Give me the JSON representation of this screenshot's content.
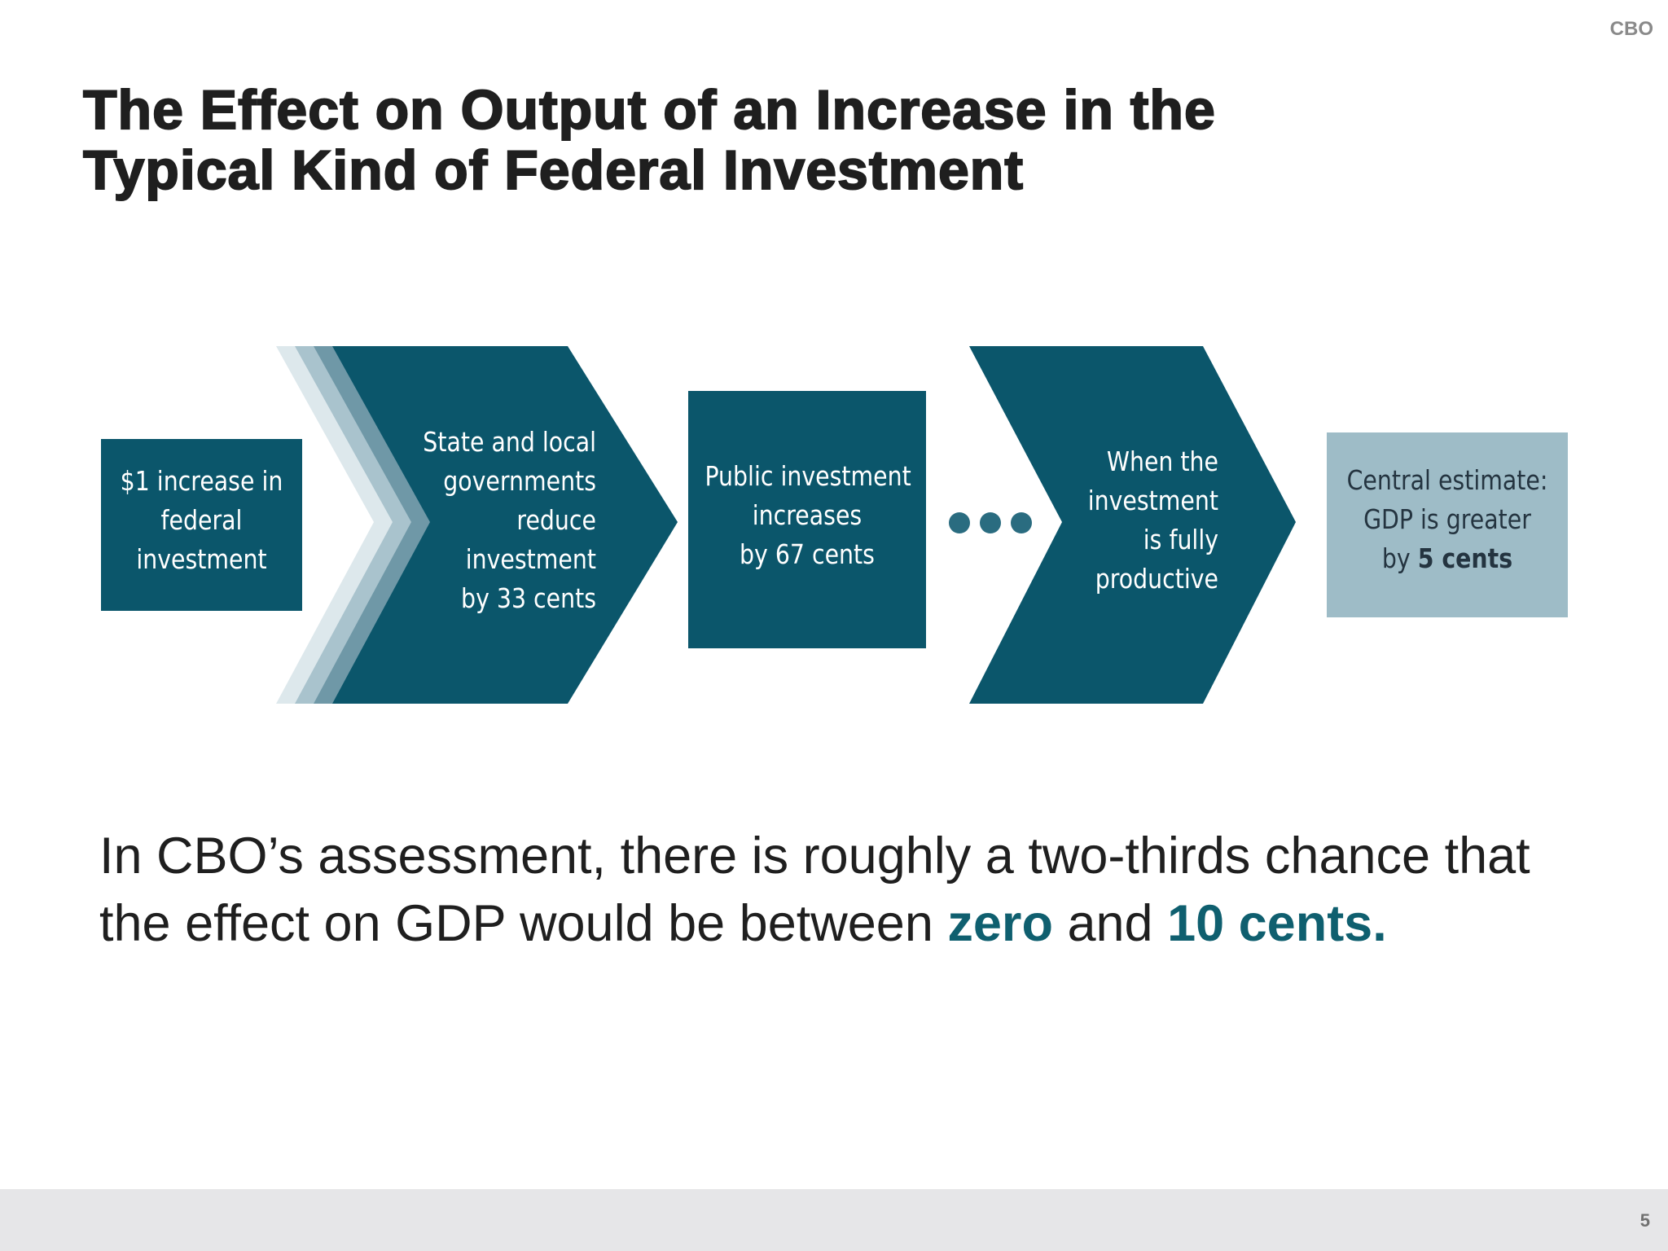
{
  "header": {
    "brand": "CBO"
  },
  "slide": {
    "title_line1": "The Effect on Output of an Increase in the",
    "title_line2": "Typical Kind of Federal Investment"
  },
  "colors": {
    "dark_teal": "#0b566b",
    "light_teal_box": "#9ebcc7",
    "chevron_shadow_1": "#6f98a7",
    "chevron_shadow_2": "#a9c3cd",
    "chevron_shadow_3": "#dde8ec",
    "highlight_teal": "#0f5f6f"
  },
  "flow": {
    "step1": {
      "lines": [
        "$1 increase in",
        "federal",
        "investment"
      ]
    },
    "step2": {
      "lines": [
        "State and local",
        "governments",
        "reduce",
        "investment",
        "by 33 cents"
      ]
    },
    "step3": {
      "lines": [
        "Public investment",
        "increases",
        "by 67 cents"
      ]
    },
    "ellipsis_dots": 3,
    "step4": {
      "lines": [
        "When the",
        "investment",
        "is fully",
        "productive"
      ]
    },
    "step5": {
      "line1": "Central estimate:",
      "line2": "GDP is greater",
      "line3_prefix": "by ",
      "line3_bold": "5 cents"
    }
  },
  "statement": {
    "part1": "In CBO’s assessment, there is roughly a two-thirds chance that the effect on GDP would be between ",
    "highlight1": "zero",
    "part2": " and ",
    "highlight2": "10 cents."
  },
  "footer": {
    "page_number": "5"
  }
}
